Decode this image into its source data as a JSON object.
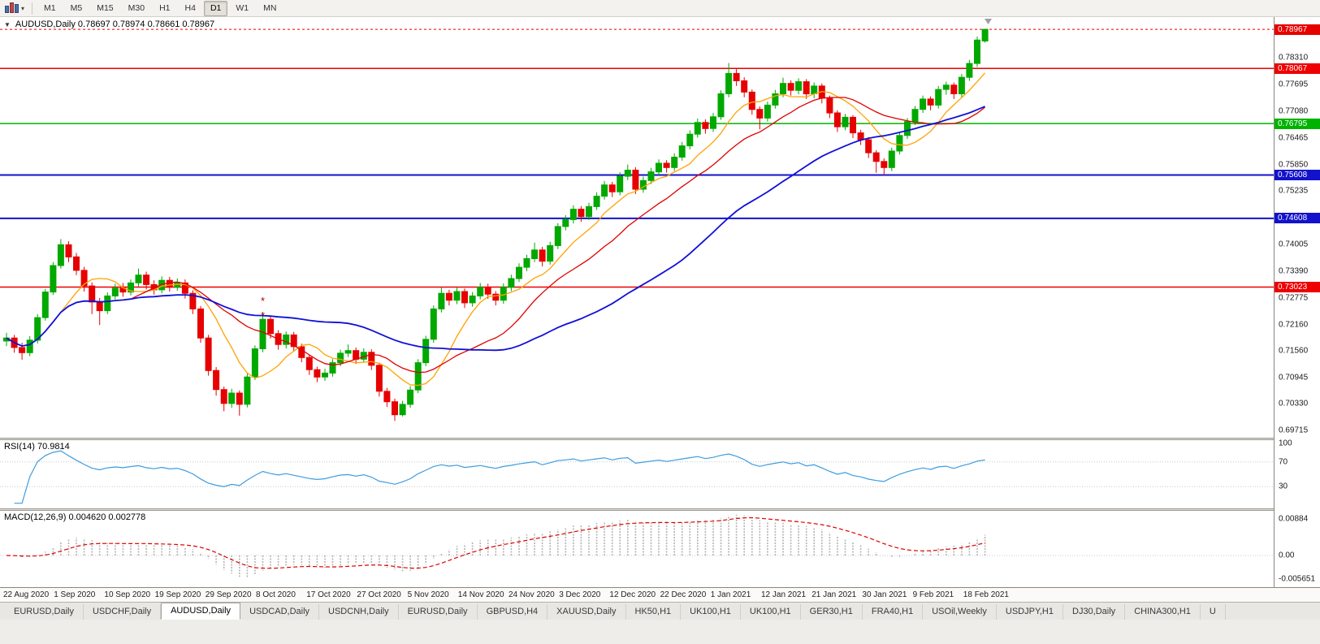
{
  "toolbar": {
    "timeframes": [
      {
        "label": "M1",
        "active": false
      },
      {
        "label": "M5",
        "active": false
      },
      {
        "label": "M15",
        "active": false
      },
      {
        "label": "M30",
        "active": false
      },
      {
        "label": "H1",
        "active": false
      },
      {
        "label": "H4",
        "active": false
      },
      {
        "label": "D1",
        "active": true
      },
      {
        "label": "W1",
        "active": false
      },
      {
        "label": "MN",
        "active": false
      }
    ]
  },
  "chart": {
    "header_text": "AUDUSD,Daily 0.78697 0.78974 0.78661 0.78967"
  },
  "price_axis": {
    "ticks": [
      {
        "label": "0.78310",
        "price": 0.7831
      },
      {
        "label": "0.77695",
        "price": 0.77695
      },
      {
        "label": "0.77080",
        "price": 0.7708
      },
      {
        "label": "0.76465",
        "price": 0.76465
      },
      {
        "label": "0.75850",
        "price": 0.7585
      },
      {
        "label": "0.75235",
        "price": 0.75235
      },
      {
        "label": "0.74005",
        "price": 0.74005
      },
      {
        "label": "0.73390",
        "price": 0.7339
      },
      {
        "label": "0.72775",
        "price": 0.72775
      },
      {
        "label": "0.72160",
        "price": 0.7216
      },
      {
        "label": "0.71560",
        "price": 0.7156
      },
      {
        "label": "0.70945",
        "price": 0.70945
      },
      {
        "label": "0.70330",
        "price": 0.7033
      },
      {
        "label": "0.69715",
        "price": 0.69715
      }
    ],
    "markers": [
      {
        "label": "0.78967",
        "price": 0.78967,
        "color": "#e60000",
        "current": true
      },
      {
        "label": "0.78067",
        "price": 0.78067,
        "color": "#ee0000",
        "width": 1.5
      },
      {
        "label": "0.76795",
        "price": 0.76795,
        "color": "#00b300",
        "width": 1.5
      },
      {
        "label": "0.75608",
        "price": 0.75608,
        "color": "#1212cc",
        "width": 2
      },
      {
        "label": "0.74608",
        "price": 0.74608,
        "color": "#1212cc",
        "width": 2
      },
      {
        "label": "0.73023",
        "price": 0.73023,
        "color": "#ee0000",
        "width": 1.5
      }
    ]
  },
  "rsi_panel": {
    "label_text": "RSI(14) 70.9814",
    "ticks": [
      {
        "label": "100",
        "value": 100
      },
      {
        "label": "70",
        "value": 70
      },
      {
        "label": "30",
        "value": 30
      }
    ],
    "levels": [
      70,
      30
    ],
    "line_color": "#3d9ce0"
  },
  "macd_panel": {
    "label_text": "MACD(12,26,9) 0.004620 0.002778",
    "ticks": [
      {
        "label": "0.00884",
        "value": 0.00884
      },
      {
        "label": "0.00",
        "value": 0
      },
      {
        "label": "-0.005651",
        "value": -0.005651
      }
    ],
    "histogram_color": "#b4b4b4",
    "signal_color": "#e00000"
  },
  "date_axis": {
    "labels": [
      "22 Aug 2020",
      "1 Sep 2020",
      "10 Sep 2020",
      "19 Sep 2020",
      "29 Sep 2020",
      "8 Oct 2020",
      "17 Oct 2020",
      "27 Oct 2020",
      "5 Nov 2020",
      "14 Nov 2020",
      "24 Nov 2020",
      "3 Dec 2020",
      "12 Dec 2020",
      "22 Dec 2020",
      "1 Jan 2021",
      "12 Jan 2021",
      "21 Jan 2021",
      "30 Jan 2021",
      "9 Feb 2021",
      "18 Feb 2021"
    ]
  },
  "tabs": [
    {
      "label": "EURUSD,Daily",
      "active": false
    },
    {
      "label": "USDCHF,Daily",
      "active": false
    },
    {
      "label": "AUDUSD,Daily",
      "active": true
    },
    {
      "label": "USDCAD,Daily",
      "active": false
    },
    {
      "label": "USDCNH,Daily",
      "active": false
    },
    {
      "label": "EURUSD,Daily",
      "active": false
    },
    {
      "label": "GBPUSD,H4",
      "active": false
    },
    {
      "label": "XAUUSD,Daily",
      "active": false
    },
    {
      "label": "HK50,H1",
      "active": false
    },
    {
      "label": "UK100,H1",
      "active": false
    },
    {
      "label": "UK100,H1",
      "active": false
    },
    {
      "label": "GER30,H1",
      "active": false
    },
    {
      "label": "FRA40,H1",
      "active": false
    },
    {
      "label": "USOil,Weekly",
      "active": false
    },
    {
      "label": "USDJPY,H1",
      "active": false
    },
    {
      "label": "DJ30,Daily",
      "active": false
    },
    {
      "label": "CHINA300,H1",
      "active": false
    },
    {
      "label": "U",
      "active": false
    }
  ],
  "chart_data": {
    "type": "candlestick",
    "symbol": "AUDUSD",
    "timeframe": "Daily",
    "current_bar": {
      "open": 0.78697,
      "high": 0.78974,
      "low": 0.78661,
      "close": 0.78967
    },
    "price_range": {
      "top": 0.7925,
      "bottom": 0.6955
    },
    "colors": {
      "up": "#00a800",
      "down": "#e60000"
    },
    "moving_averages": [
      {
        "period": 8,
        "color": "#ffa200",
        "width": 1.3
      },
      {
        "period": 17,
        "color": "#e00000",
        "width": 1.3
      },
      {
        "period": 40,
        "color": "#1010d8",
        "width": 1.8
      }
    ],
    "indicators": [
      {
        "name": "RSI",
        "period": 14,
        "last_value": 70.9814
      },
      {
        "name": "MACD",
        "fast": 12,
        "slow": 26,
        "signal": 9,
        "last_values": [
          0.00462,
          0.002778
        ]
      }
    ],
    "annotations": [
      {
        "bar": 33,
        "price": 0.7262,
        "text": "*"
      },
      {
        "bar": 33,
        "price": 0.7228,
        "text": "*"
      }
    ],
    "candles": [
      [
        0.7178,
        0.7197,
        0.7166,
        0.7185
      ],
      [
        0.7185,
        0.7192,
        0.7151,
        0.7163
      ],
      [
        0.7163,
        0.7174,
        0.7135,
        0.7151
      ],
      [
        0.7151,
        0.7189,
        0.7143,
        0.718
      ],
      [
        0.718,
        0.724,
        0.7172,
        0.7232
      ],
      [
        0.7232,
        0.7298,
        0.7225,
        0.7291
      ],
      [
        0.7291,
        0.736,
        0.7284,
        0.7352
      ],
      [
        0.7352,
        0.7413,
        0.7345,
        0.74
      ],
      [
        0.74,
        0.7408,
        0.736,
        0.7372
      ],
      [
        0.7372,
        0.7381,
        0.733,
        0.7341
      ],
      [
        0.7341,
        0.7349,
        0.7292,
        0.7305
      ],
      [
        0.7305,
        0.7313,
        0.724,
        0.7268
      ],
      [
        0.7268,
        0.7277,
        0.7215,
        0.7248
      ],
      [
        0.7248,
        0.729,
        0.724,
        0.7282
      ],
      [
        0.7282,
        0.731,
        0.7274,
        0.73
      ],
      [
        0.73,
        0.7312,
        0.728,
        0.7291
      ],
      [
        0.7291,
        0.732,
        0.7283,
        0.7312
      ],
      [
        0.7312,
        0.7345,
        0.7304,
        0.733
      ],
      [
        0.733,
        0.7338,
        0.7297,
        0.7308
      ],
      [
        0.7308,
        0.7318,
        0.7285,
        0.7296
      ],
      [
        0.7296,
        0.7327,
        0.7288,
        0.7318
      ],
      [
        0.7318,
        0.7326,
        0.7292,
        0.7302
      ],
      [
        0.7302,
        0.7322,
        0.7294,
        0.7312
      ],
      [
        0.7312,
        0.732,
        0.7276,
        0.7288
      ],
      [
        0.7288,
        0.7295,
        0.724,
        0.7252
      ],
      [
        0.7252,
        0.7259,
        0.7174,
        0.7185
      ],
      [
        0.7185,
        0.7192,
        0.7098,
        0.711
      ],
      [
        0.711,
        0.7118,
        0.7052,
        0.7066
      ],
      [
        0.7066,
        0.7073,
        0.7016,
        0.7034
      ],
      [
        0.7034,
        0.7068,
        0.7024,
        0.7058
      ],
      [
        0.7058,
        0.7064,
        0.7006,
        0.7032
      ],
      [
        0.7032,
        0.7103,
        0.7025,
        0.7095
      ],
      [
        0.7095,
        0.7168,
        0.7088,
        0.716
      ],
      [
        0.716,
        0.7243,
        0.7152,
        0.7228
      ],
      [
        0.7228,
        0.7236,
        0.7184,
        0.7195
      ],
      [
        0.7195,
        0.7203,
        0.7158,
        0.717
      ],
      [
        0.717,
        0.72,
        0.7161,
        0.7192
      ],
      [
        0.7192,
        0.7199,
        0.7154,
        0.7165
      ],
      [
        0.7165,
        0.7172,
        0.7129,
        0.714
      ],
      [
        0.714,
        0.7147,
        0.71,
        0.7112
      ],
      [
        0.7112,
        0.7119,
        0.7083,
        0.7095
      ],
      [
        0.7095,
        0.7114,
        0.7086,
        0.7104
      ],
      [
        0.7104,
        0.7136,
        0.7096,
        0.7128
      ],
      [
        0.7128,
        0.7158,
        0.712,
        0.715
      ],
      [
        0.715,
        0.717,
        0.7141,
        0.7156
      ],
      [
        0.7156,
        0.7163,
        0.7125,
        0.7136
      ],
      [
        0.7136,
        0.7161,
        0.7128,
        0.7152
      ],
      [
        0.7152,
        0.7159,
        0.7111,
        0.7122
      ],
      [
        0.7122,
        0.7128,
        0.705,
        0.7062
      ],
      [
        0.7062,
        0.707,
        0.7026,
        0.7038
      ],
      [
        0.7038,
        0.7045,
        0.6994,
        0.7008
      ],
      [
        0.7008,
        0.704,
        0.7004,
        0.7032
      ],
      [
        0.7032,
        0.7074,
        0.7024,
        0.7065
      ],
      [
        0.7065,
        0.7136,
        0.7058,
        0.7128
      ],
      [
        0.7128,
        0.719,
        0.712,
        0.7182
      ],
      [
        0.7182,
        0.726,
        0.7174,
        0.7252
      ],
      [
        0.7252,
        0.7302,
        0.7244,
        0.7288
      ],
      [
        0.7288,
        0.7296,
        0.726,
        0.7272
      ],
      [
        0.7272,
        0.7301,
        0.7263,
        0.7292
      ],
      [
        0.7292,
        0.7299,
        0.7254,
        0.7266
      ],
      [
        0.7266,
        0.7291,
        0.7257,
        0.7282
      ],
      [
        0.7282,
        0.7312,
        0.7274,
        0.7302
      ],
      [
        0.7302,
        0.731,
        0.7275,
        0.7286
      ],
      [
        0.7286,
        0.7293,
        0.726,
        0.7272
      ],
      [
        0.7272,
        0.7311,
        0.7264,
        0.7302
      ],
      [
        0.7302,
        0.7331,
        0.7293,
        0.7322
      ],
      [
        0.7322,
        0.7357,
        0.7314,
        0.7348
      ],
      [
        0.7348,
        0.7377,
        0.7339,
        0.7368
      ],
      [
        0.7368,
        0.7405,
        0.736,
        0.7388
      ],
      [
        0.7388,
        0.7395,
        0.735,
        0.7362
      ],
      [
        0.7362,
        0.7407,
        0.7354,
        0.7398
      ],
      [
        0.7398,
        0.745,
        0.739,
        0.7442
      ],
      [
        0.7442,
        0.7468,
        0.7433,
        0.7458
      ],
      [
        0.7458,
        0.7491,
        0.7449,
        0.7482
      ],
      [
        0.7482,
        0.7489,
        0.7453,
        0.7465
      ],
      [
        0.7465,
        0.7497,
        0.7457,
        0.7488
      ],
      [
        0.7488,
        0.7521,
        0.748,
        0.7512
      ],
      [
        0.7512,
        0.7547,
        0.7504,
        0.7538
      ],
      [
        0.7538,
        0.7545,
        0.751,
        0.7522
      ],
      [
        0.7522,
        0.7567,
        0.7514,
        0.7558
      ],
      [
        0.7558,
        0.7585,
        0.7549,
        0.7572
      ],
      [
        0.7572,
        0.7579,
        0.7517,
        0.7528
      ],
      [
        0.7528,
        0.7557,
        0.752,
        0.7548
      ],
      [
        0.7548,
        0.7577,
        0.754,
        0.7568
      ],
      [
        0.7568,
        0.7597,
        0.756,
        0.7588
      ],
      [
        0.7588,
        0.7595,
        0.7566,
        0.7578
      ],
      [
        0.7578,
        0.7611,
        0.757,
        0.7602
      ],
      [
        0.7602,
        0.7637,
        0.7594,
        0.7628
      ],
      [
        0.7628,
        0.7664,
        0.762,
        0.7655
      ],
      [
        0.7655,
        0.7691,
        0.7647,
        0.7682
      ],
      [
        0.7682,
        0.7689,
        0.7656,
        0.7668
      ],
      [
        0.7668,
        0.7704,
        0.766,
        0.7695
      ],
      [
        0.7695,
        0.7756,
        0.7688,
        0.7748
      ],
      [
        0.7748,
        0.7819,
        0.774,
        0.7795
      ],
      [
        0.7795,
        0.7805,
        0.7766,
        0.7778
      ],
      [
        0.7778,
        0.7786,
        0.774,
        0.7752
      ],
      [
        0.7752,
        0.7758,
        0.77,
        0.7712
      ],
      [
        0.7712,
        0.7719,
        0.7666,
        0.7692
      ],
      [
        0.7692,
        0.773,
        0.7684,
        0.7722
      ],
      [
        0.7722,
        0.7757,
        0.7714,
        0.7748
      ],
      [
        0.7748,
        0.7785,
        0.774,
        0.7772
      ],
      [
        0.7772,
        0.7779,
        0.7744,
        0.7756
      ],
      [
        0.7756,
        0.7784,
        0.7747,
        0.7776
      ],
      [
        0.7776,
        0.7782,
        0.7736,
        0.7748
      ],
      [
        0.7748,
        0.7774,
        0.7738,
        0.7766
      ],
      [
        0.7766,
        0.7772,
        0.7726,
        0.7738
      ],
      [
        0.7738,
        0.7744,
        0.7692,
        0.7704
      ],
      [
        0.7704,
        0.771,
        0.766,
        0.7672
      ],
      [
        0.7672,
        0.7702,
        0.7664,
        0.7694
      ],
      [
        0.7694,
        0.7699,
        0.7646,
        0.7658
      ],
      [
        0.7658,
        0.7665,
        0.763,
        0.7642
      ],
      [
        0.7642,
        0.7648,
        0.76,
        0.7612
      ],
      [
        0.7612,
        0.7618,
        0.7566,
        0.7592
      ],
      [
        0.7592,
        0.7599,
        0.756,
        0.7578
      ],
      [
        0.7578,
        0.7624,
        0.757,
        0.7616
      ],
      [
        0.7616,
        0.766,
        0.7608,
        0.7652
      ],
      [
        0.7652,
        0.7692,
        0.7644,
        0.7684
      ],
      [
        0.7684,
        0.772,
        0.7676,
        0.7712
      ],
      [
        0.7712,
        0.7744,
        0.7704,
        0.7736
      ],
      [
        0.7736,
        0.7742,
        0.771,
        0.7722
      ],
      [
        0.7722,
        0.7766,
        0.7714,
        0.7758
      ],
      [
        0.7758,
        0.7776,
        0.7746,
        0.7768
      ],
      [
        0.7768,
        0.7774,
        0.7736,
        0.7748
      ],
      [
        0.7748,
        0.7794,
        0.774,
        0.7786
      ],
      [
        0.7786,
        0.7826,
        0.7778,
        0.7818
      ],
      [
        0.7818,
        0.788,
        0.781,
        0.7872
      ],
      [
        0.78697,
        0.78974,
        0.78661,
        0.78967
      ]
    ]
  }
}
